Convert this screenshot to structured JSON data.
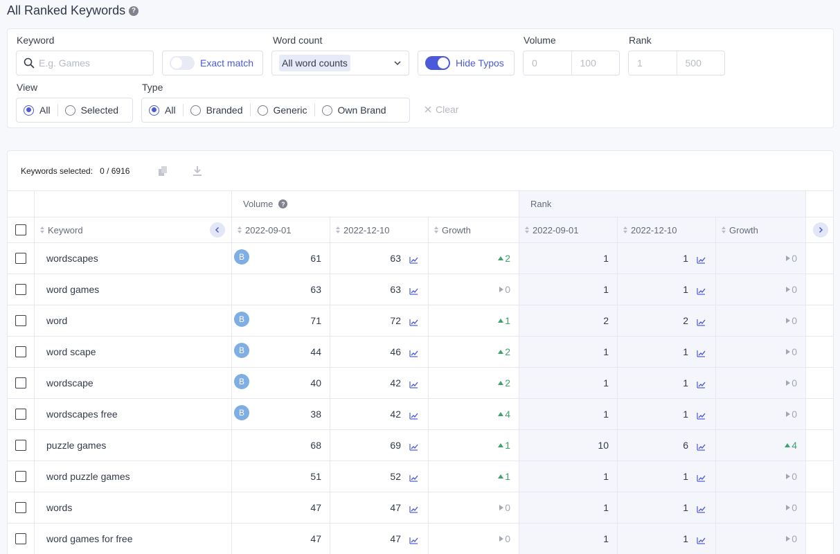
{
  "page": {
    "title": "All Ranked Keywords"
  },
  "filters": {
    "keyword_label": "Keyword",
    "keyword_placeholder": "E.g. Games",
    "exact_match_label": "Exact match",
    "word_count_label": "Word count",
    "word_count_value": "All word counts",
    "hide_typos_label": "Hide Typos",
    "volume_label": "Volume",
    "volume_min_placeholder": "0",
    "volume_max_placeholder": "100",
    "rank_label": "Rank",
    "rank_min_placeholder": "1",
    "rank_max_placeholder": "500",
    "view_label": "View",
    "view_options": [
      "All",
      "Selected"
    ],
    "type_label": "Type",
    "type_options": [
      "All",
      "Branded",
      "Generic",
      "Own Brand"
    ],
    "clear_label": "Clear"
  },
  "selection": {
    "label": "Keywords selected:",
    "count": "0 / 6916"
  },
  "table": {
    "group_volume": "Volume",
    "group_rank": "Rank",
    "col_keyword": "Keyword",
    "col_date1": "2022-09-01",
    "col_date2": "2022-12-10",
    "col_growth": "Growth",
    "badge_letter": "B",
    "rows": [
      {
        "keyword": "wordscapes",
        "branded": true,
        "vol1": "61",
        "vol2": "63",
        "vol_growth": "2",
        "vol_trend": "up",
        "rank1": "1",
        "rank2": "1",
        "rank_growth": "0",
        "rank_trend": "flat"
      },
      {
        "keyword": "word games",
        "branded": false,
        "vol1": "63",
        "vol2": "63",
        "vol_growth": "0",
        "vol_trend": "flat",
        "rank1": "1",
        "rank2": "1",
        "rank_growth": "0",
        "rank_trend": "flat"
      },
      {
        "keyword": "word",
        "branded": true,
        "vol1": "71",
        "vol2": "72",
        "vol_growth": "1",
        "vol_trend": "up",
        "rank1": "2",
        "rank2": "2",
        "rank_growth": "0",
        "rank_trend": "flat"
      },
      {
        "keyword": "word scape",
        "branded": true,
        "vol1": "44",
        "vol2": "46",
        "vol_growth": "2",
        "vol_trend": "up",
        "rank1": "1",
        "rank2": "1",
        "rank_growth": "0",
        "rank_trend": "flat"
      },
      {
        "keyword": "wordscape",
        "branded": true,
        "vol1": "40",
        "vol2": "42",
        "vol_growth": "2",
        "vol_trend": "up",
        "rank1": "1",
        "rank2": "1",
        "rank_growth": "0",
        "rank_trend": "flat"
      },
      {
        "keyword": "wordscapes free",
        "branded": true,
        "vol1": "38",
        "vol2": "42",
        "vol_growth": "4",
        "vol_trend": "up",
        "rank1": "1",
        "rank2": "1",
        "rank_growth": "0",
        "rank_trend": "flat"
      },
      {
        "keyword": "puzzle games",
        "branded": false,
        "vol1": "68",
        "vol2": "69",
        "vol_growth": "1",
        "vol_trend": "up",
        "rank1": "10",
        "rank2": "6",
        "rank_growth": "4",
        "rank_trend": "up"
      },
      {
        "keyword": "word puzzle games",
        "branded": false,
        "vol1": "51",
        "vol2": "52",
        "vol_growth": "1",
        "vol_trend": "up",
        "rank1": "1",
        "rank2": "1",
        "rank_growth": "0",
        "rank_trend": "flat"
      },
      {
        "keyword": "words",
        "branded": false,
        "vol1": "47",
        "vol2": "47",
        "vol_growth": "0",
        "vol_trend": "flat",
        "rank1": "1",
        "rank2": "1",
        "rank_growth": "0",
        "rank_trend": "flat"
      },
      {
        "keyword": "word games for free",
        "branded": false,
        "vol1": "47",
        "vol2": "47",
        "vol_growth": "0",
        "vol_trend": "flat",
        "rank1": "1",
        "rank2": "1",
        "rank_growth": "0",
        "rank_trend": "flat"
      }
    ]
  }
}
